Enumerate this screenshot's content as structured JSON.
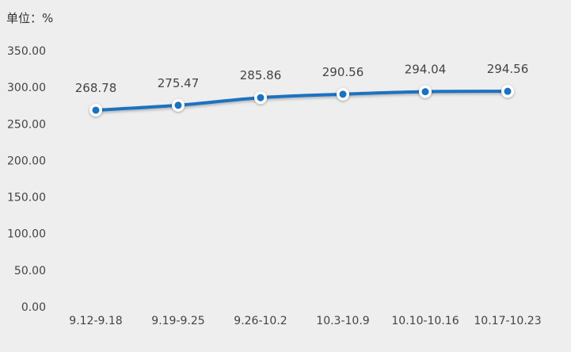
{
  "chart_data": {
    "type": "line",
    "unit_label": "单位：%",
    "categories": [
      "9.12-9.18",
      "9.19-9.25",
      "9.26-10.2",
      "10.3-10.9",
      "10.10-10.16",
      "10.17-10.23"
    ],
    "values": [
      268.78,
      275.47,
      285.86,
      290.56,
      294.04,
      294.56
    ],
    "value_labels": [
      "268.78",
      "275.47",
      "285.86",
      "290.56",
      "294.04",
      "294.56"
    ],
    "yticks": [
      "0.00",
      "50.00",
      "100.00",
      "150.00",
      "200.00",
      "250.00",
      "300.00",
      "350.00"
    ],
    "ylim": [
      0,
      350
    ],
    "grid": false,
    "line_color": "#1a72c0",
    "marker_fill": "#1a72c0",
    "marker_ring": "#ffffff"
  }
}
